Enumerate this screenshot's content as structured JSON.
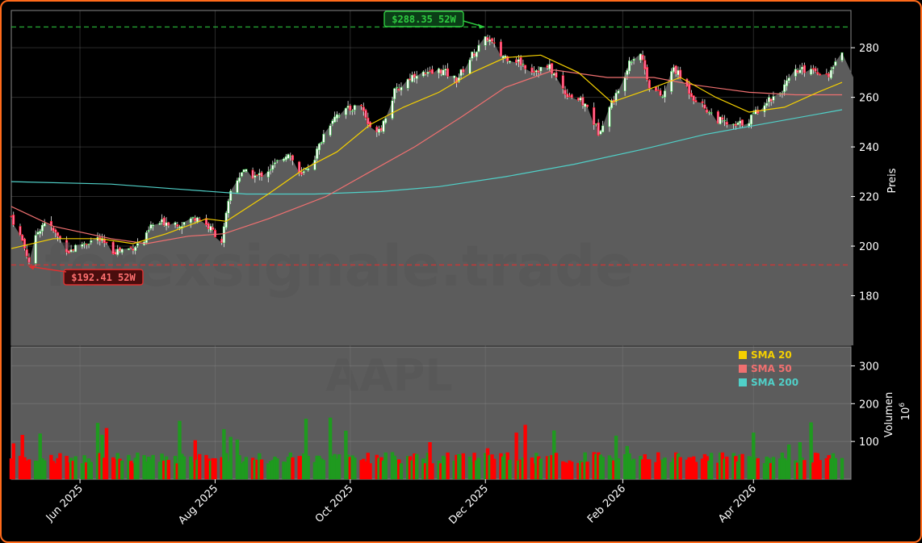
{
  "chart_data": {
    "type": "candlestick",
    "ticker": "AAPL",
    "watermark": "forexsignale.trade",
    "ylabel_price": "Preis",
    "ylabel_volume": "Volumen",
    "volume_unit": "10",
    "volume_unit_exp": "6",
    "price_ylim": [
      160,
      295
    ],
    "volume_ylim": [
      0,
      350
    ],
    "price_ticks": [
      180,
      200,
      220,
      240,
      260,
      280
    ],
    "volume_ticks": [
      100,
      200,
      300
    ],
    "x_ticks": [
      {
        "label": "Jun 2025",
        "date": "2025-06-01"
      },
      {
        "label": "Aug 2025",
        "date": "2025-08-01"
      },
      {
        "label": "Oct 2025",
        "date": "2025-10-01"
      },
      {
        "label": "Dec 2025",
        "date": "2025-12-01"
      },
      {
        "label": "Feb 2026",
        "date": "2026-02-01"
      },
      {
        "label": "Apr 2026",
        "date": "2026-04-01"
      }
    ],
    "x_range": [
      "2025-05-01",
      "2026-05-15"
    ],
    "high_52w": {
      "value": 288.35,
      "label": "$288.35 52W",
      "date": "2025-12-02",
      "color": "#2ecc40"
    },
    "low_52w": {
      "value": 192.41,
      "label": "$192.41 52W",
      "date": "2025-05-08",
      "color": "#e03030"
    },
    "legend": [
      {
        "name": "SMA 20",
        "color": "#f5d000"
      },
      {
        "name": "SMA 50",
        "color": "#f07070"
      },
      {
        "name": "SMA 200",
        "color": "#50d0c8"
      }
    ],
    "colors": {
      "up": "#2ecc40",
      "down": "#ff0000",
      "area": "#5c5c5c"
    },
    "price_anchors": [
      [
        "2025-05-01",
        212
      ],
      [
        "2025-05-06",
        202
      ],
      [
        "2025-05-09",
        194
      ],
      [
        "2025-05-13",
        206
      ],
      [
        "2025-05-16",
        210
      ],
      [
        "2025-05-21",
        205
      ],
      [
        "2025-05-27",
        198
      ],
      [
        "2025-06-02",
        201
      ],
      [
        "2025-06-09",
        203
      ],
      [
        "2025-06-16",
        198
      ],
      [
        "2025-06-23",
        199
      ],
      [
        "2025-06-30",
        202
      ],
      [
        "2025-07-03",
        208
      ],
      [
        "2025-07-10",
        210
      ],
      [
        "2025-07-17",
        209
      ],
      [
        "2025-07-24",
        212
      ],
      [
        "2025-07-31",
        206
      ],
      [
        "2025-08-04",
        202
      ],
      [
        "2025-08-08",
        222
      ],
      [
        "2025-08-13",
        230
      ],
      [
        "2025-08-20",
        228
      ],
      [
        "2025-08-27",
        232
      ],
      [
        "2025-09-03",
        238
      ],
      [
        "2025-09-09",
        228
      ],
      [
        "2025-09-15",
        236
      ],
      [
        "2025-09-19",
        245
      ],
      [
        "2025-09-24",
        253
      ],
      [
        "2025-09-30",
        255
      ],
      [
        "2025-10-06",
        257
      ],
      [
        "2025-10-10",
        247
      ],
      [
        "2025-10-15",
        248
      ],
      [
        "2025-10-21",
        262
      ],
      [
        "2025-10-28",
        268
      ],
      [
        "2025-10-31",
        270
      ],
      [
        "2025-11-05",
        269
      ],
      [
        "2025-11-11",
        271
      ],
      [
        "2025-11-18",
        267
      ],
      [
        "2025-11-25",
        277
      ],
      [
        "2025-12-02",
        284
      ],
      [
        "2025-12-08",
        277
      ],
      [
        "2025-12-15",
        275
      ],
      [
        "2025-12-22",
        271
      ],
      [
        "2025-12-30",
        272
      ],
      [
        "2026-01-06",
        262
      ],
      [
        "2026-01-12",
        259
      ],
      [
        "2026-01-16",
        256
      ],
      [
        "2026-01-21",
        246
      ],
      [
        "2026-01-27",
        258
      ],
      [
        "2026-01-30",
        262
      ],
      [
        "2026-02-04",
        275
      ],
      [
        "2026-02-09",
        278
      ],
      [
        "2026-02-13",
        265
      ],
      [
        "2026-02-19",
        260
      ],
      [
        "2026-02-24",
        272
      ],
      [
        "2026-02-27",
        268
      ],
      [
        "2026-03-05",
        260
      ],
      [
        "2026-03-11",
        255
      ],
      [
        "2026-03-16",
        251
      ],
      [
        "2026-03-23",
        248
      ],
      [
        "2026-03-30",
        251
      ],
      [
        "2026-04-06",
        258
      ],
      [
        "2026-04-13",
        262
      ],
      [
        "2026-04-20",
        270
      ],
      [
        "2026-04-27",
        272
      ],
      [
        "2026-05-04",
        269
      ],
      [
        "2026-05-07",
        271
      ],
      [
        "2026-05-11",
        279
      ]
    ],
    "sma20_points": [
      [
        "2025-05-01",
        199
      ],
      [
        "2025-05-20",
        203
      ],
      [
        "2025-06-10",
        203
      ],
      [
        "2025-06-25",
        201
      ],
      [
        "2025-07-10",
        205
      ],
      [
        "2025-07-28",
        211
      ],
      [
        "2025-08-06",
        210
      ],
      [
        "2025-08-25",
        221
      ],
      [
        "2025-09-10",
        231
      ],
      [
        "2025-09-25",
        238
      ],
      [
        "2025-10-10",
        249
      ],
      [
        "2025-10-25",
        256
      ],
      [
        "2025-11-10",
        262
      ],
      [
        "2025-11-25",
        270
      ],
      [
        "2025-12-10",
        276
      ],
      [
        "2025-12-26",
        277
      ],
      [
        "2026-01-12",
        270
      ],
      [
        "2026-01-27",
        258
      ],
      [
        "2026-02-12",
        263
      ],
      [
        "2026-02-27",
        268
      ],
      [
        "2026-03-15",
        260
      ],
      [
        "2026-03-30",
        254
      ],
      [
        "2026-04-15",
        256
      ],
      [
        "2026-04-30",
        262
      ],
      [
        "2026-05-11",
        266
      ]
    ],
    "sma50_points": [
      [
        "2025-05-01",
        216
      ],
      [
        "2025-05-20",
        208
      ],
      [
        "2025-06-15",
        203
      ],
      [
        "2025-07-01",
        201
      ],
      [
        "2025-07-20",
        204
      ],
      [
        "2025-08-05",
        205
      ],
      [
        "2025-08-25",
        211
      ],
      [
        "2025-09-20",
        220
      ],
      [
        "2025-10-10",
        230
      ],
      [
        "2025-10-30",
        240
      ],
      [
        "2025-11-20",
        252
      ],
      [
        "2025-12-10",
        264
      ],
      [
        "2026-01-01",
        271
      ],
      [
        "2026-01-25",
        268
      ],
      [
        "2026-02-15",
        268
      ],
      [
        "2026-03-05",
        265
      ],
      [
        "2026-03-30",
        262
      ],
      [
        "2026-04-20",
        261
      ],
      [
        "2026-05-11",
        261
      ]
    ],
    "sma200_points": [
      [
        "2025-05-01",
        226
      ],
      [
        "2025-06-15",
        225
      ],
      [
        "2025-07-15",
        223
      ],
      [
        "2025-08-15",
        221
      ],
      [
        "2025-09-15",
        221
      ],
      [
        "2025-10-15",
        222
      ],
      [
        "2025-11-10",
        224
      ],
      [
        "2025-12-10",
        228
      ],
      [
        "2026-01-10",
        233
      ],
      [
        "2026-02-10",
        239
      ],
      [
        "2026-03-10",
        245
      ],
      [
        "2026-04-10",
        250
      ],
      [
        "2026-05-11",
        255
      ]
    ]
  }
}
